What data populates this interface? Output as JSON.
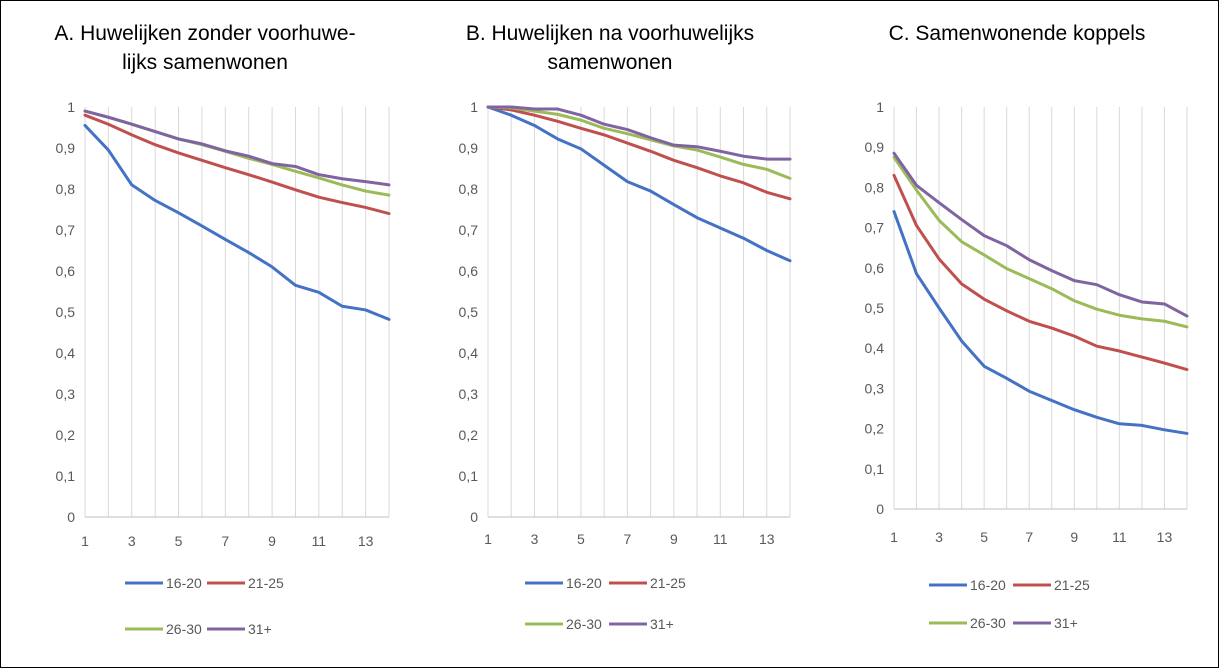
{
  "chart_data": [
    {
      "type": "line",
      "title": "A. Huwelijken zonder voorhuwelijks samenwonen",
      "title_lines": [
        "A. Huwelijken zonder voorhuwe-",
        "lijks samenwonen"
      ],
      "xlabel": "",
      "ylabel": "",
      "x": [
        1,
        2,
        3,
        4,
        5,
        6,
        7,
        8,
        9,
        10,
        11,
        12,
        13,
        14
      ],
      "x_tick_labels": [
        "1",
        "3",
        "5",
        "7",
        "9",
        "11",
        "13"
      ],
      "y_tick_labels": [
        "0",
        "0,1",
        "0,2",
        "0,3",
        "0,4",
        "0,5",
        "0,6",
        "0,7",
        "0,8",
        "0,9",
        "1"
      ],
      "ylim": [
        0,
        1
      ],
      "grid": true,
      "legend_position": "bottom",
      "series": [
        {
          "name": "16-20",
          "color": "#4472C4",
          "values": [
            0.955,
            0.895,
            0.81,
            0.772,
            0.742,
            0.71,
            0.677,
            0.645,
            0.61,
            0.565,
            0.548,
            0.514,
            0.505,
            0.482
          ]
        },
        {
          "name": "21-25",
          "color": "#C0504D",
          "values": [
            0.98,
            0.958,
            0.932,
            0.908,
            0.888,
            0.87,
            0.852,
            0.835,
            0.817,
            0.798,
            0.78,
            0.767,
            0.755,
            0.74
          ]
        },
        {
          "name": "26-30",
          "color": "#9BBB59",
          "values": [
            0.99,
            0.975,
            0.958,
            0.94,
            0.922,
            0.908,
            0.892,
            0.875,
            0.86,
            0.843,
            0.827,
            0.81,
            0.795,
            0.785
          ]
        },
        {
          "name": "31+",
          "color": "#8064A2",
          "values": [
            0.99,
            0.975,
            0.958,
            0.94,
            0.922,
            0.91,
            0.893,
            0.88,
            0.862,
            0.855,
            0.835,
            0.825,
            0.818,
            0.81
          ]
        }
      ]
    },
    {
      "type": "line",
      "title": "B. Huwelijken na voorhuwelijks samenwonen",
      "title_lines": [
        "B. Huwelijken na voorhuwelijks",
        "samenwonen"
      ],
      "xlabel": "",
      "ylabel": "",
      "x": [
        1,
        2,
        3,
        4,
        5,
        6,
        7,
        8,
        9,
        10,
        11,
        12,
        13,
        14
      ],
      "x_tick_labels": [
        "1",
        "3",
        "5",
        "7",
        "9",
        "11",
        "13"
      ],
      "y_tick_labels": [
        "0",
        "0,1",
        "0,2",
        "0,3",
        "0,4",
        "0,5",
        "0,6",
        "0,7",
        "0,8",
        "0,9",
        "1"
      ],
      "ylim": [
        0,
        1
      ],
      "grid": true,
      "legend_position": "bottom",
      "series": [
        {
          "name": "16-20",
          "color": "#4472C4",
          "values": [
            1.0,
            0.98,
            0.955,
            0.922,
            0.898,
            0.858,
            0.818,
            0.795,
            0.762,
            0.73,
            0.705,
            0.68,
            0.65,
            0.625
          ]
        },
        {
          "name": "21-25",
          "color": "#C0504D",
          "values": [
            1.0,
            0.993,
            0.98,
            0.965,
            0.948,
            0.932,
            0.912,
            0.892,
            0.87,
            0.852,
            0.832,
            0.815,
            0.792,
            0.776
          ]
        },
        {
          "name": "26-30",
          "color": "#9BBB59",
          "values": [
            1.0,
            0.998,
            0.99,
            0.982,
            0.968,
            0.948,
            0.935,
            0.92,
            0.905,
            0.895,
            0.878,
            0.86,
            0.848,
            0.826
          ]
        },
        {
          "name": "31+",
          "color": "#8064A2",
          "values": [
            1.0,
            1.0,
            0.995,
            0.995,
            0.98,
            0.958,
            0.945,
            0.925,
            0.907,
            0.903,
            0.892,
            0.88,
            0.873,
            0.873
          ]
        }
      ]
    },
    {
      "type": "line",
      "title": "C. Samenwonende koppels",
      "title_lines": [
        "C. Samenwonende koppels"
      ],
      "xlabel": "",
      "ylabel": "",
      "x": [
        1,
        2,
        3,
        4,
        5,
        6,
        7,
        8,
        9,
        10,
        11,
        12,
        13,
        14
      ],
      "x_tick_labels": [
        "1",
        "3",
        "5",
        "7",
        "9",
        "11",
        "13"
      ],
      "y_tick_labels": [
        "0",
        "0,1",
        "0,2",
        "0,3",
        "0,4",
        "0,5",
        "0,6",
        "0,7",
        "0,8",
        "0,9",
        "1"
      ],
      "ylim": [
        0,
        1
      ],
      "grid": true,
      "legend_position": "bottom",
      "series": [
        {
          "name": "16-20",
          "color": "#4472C4",
          "values": [
            0.74,
            0.585,
            0.5,
            0.418,
            0.355,
            0.325,
            0.293,
            0.27,
            0.247,
            0.228,
            0.212,
            0.208,
            0.197,
            0.188
          ]
        },
        {
          "name": "21-25",
          "color": "#C0504D",
          "values": [
            0.83,
            0.705,
            0.622,
            0.56,
            0.522,
            0.493,
            0.467,
            0.45,
            0.43,
            0.405,
            0.393,
            0.378,
            0.363,
            0.347
          ]
        },
        {
          "name": "26-30",
          "color": "#9BBB59",
          "values": [
            0.875,
            0.793,
            0.718,
            0.665,
            0.632,
            0.598,
            0.573,
            0.548,
            0.518,
            0.497,
            0.482,
            0.473,
            0.467,
            0.453
          ]
        },
        {
          "name": "31+",
          "color": "#8064A2",
          "values": [
            0.885,
            0.805,
            0.762,
            0.72,
            0.68,
            0.655,
            0.62,
            0.593,
            0.568,
            0.558,
            0.533,
            0.515,
            0.51,
            0.48
          ]
        }
      ]
    }
  ]
}
